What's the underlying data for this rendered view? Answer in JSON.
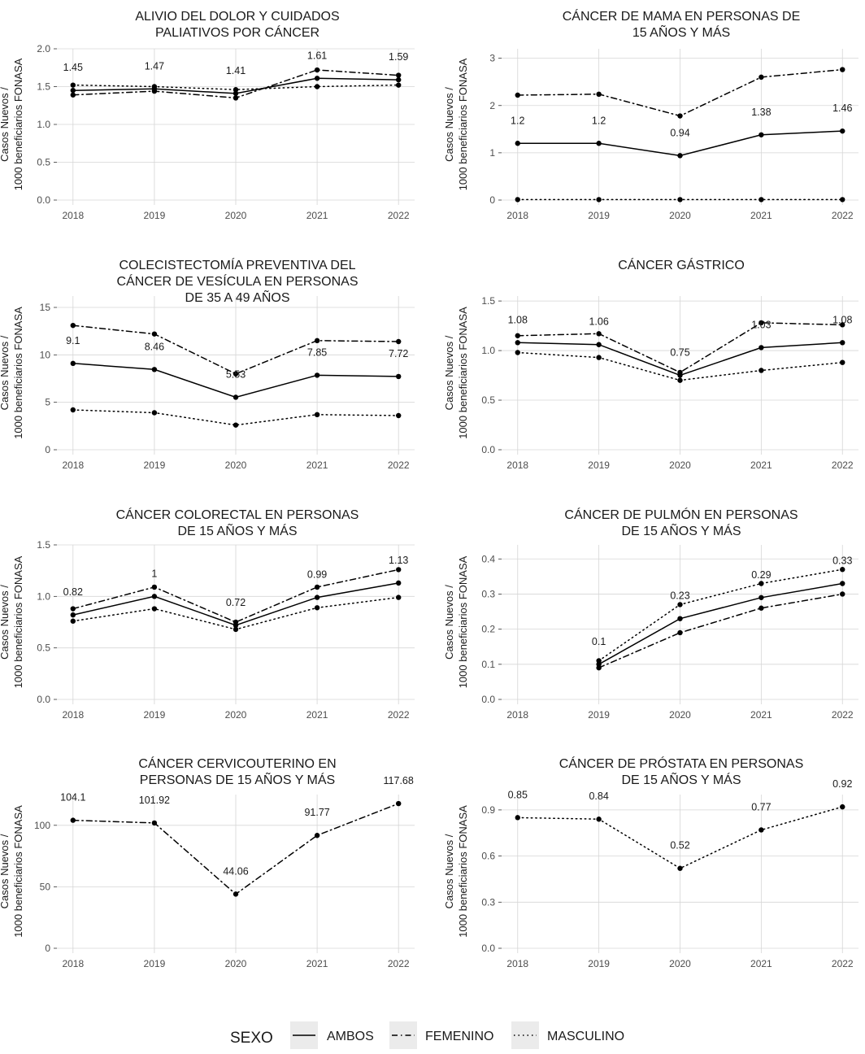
{
  "colors": {
    "grid": "#d6d6d6",
    "line": "#000000",
    "text": "#1a1a1a",
    "tick_text": "#4d4d4d"
  },
  "y_axis_label": [
    "Casos Nuevos /",
    "1000 beneficiarios FONASA"
  ],
  "legend": {
    "title": "SEXO",
    "items": [
      {
        "key": "ambos",
        "label": "AMBOS"
      },
      {
        "key": "femenino",
        "label": "FEMENINO"
      },
      {
        "key": "masculino",
        "label": "MASCULINO"
      }
    ]
  },
  "chart_data": [
    {
      "type": "line",
      "title": [
        "ALIVIO DEL DOLOR Y CUIDADOS",
        "PALIATIVOS POR CÁNCER"
      ],
      "x": [
        "2018",
        "2019",
        "2020",
        "2021",
        "2022"
      ],
      "ylim": [
        0,
        2.0
      ],
      "yticks": [
        "0.0",
        "0.5",
        "1.0",
        "1.5",
        "2.0"
      ],
      "series": [
        {
          "name": "AMBOS",
          "style": "solid",
          "values": [
            1.45,
            1.47,
            1.41,
            1.61,
            1.59
          ]
        },
        {
          "name": "FEMENINO",
          "style": "dashdot",
          "values": [
            1.39,
            1.44,
            1.35,
            1.72,
            1.65
          ]
        },
        {
          "name": "MASCULINO",
          "style": "dotted",
          "values": [
            1.52,
            1.5,
            1.46,
            1.5,
            1.52
          ]
        }
      ],
      "data_labels": [
        "1.45",
        "1.47",
        "1.41",
        "1.61",
        "1.59"
      ]
    },
    {
      "type": "line",
      "title": [
        "CÁNCER DE MAMA EN PERSONAS DE",
        "15 AÑOS Y MÁS"
      ],
      "x": [
        "2018",
        "2019",
        "2020",
        "2021",
        "2022"
      ],
      "ylim": [
        0,
        3.2
      ],
      "yticks": [
        "0",
        "1",
        "2",
        "3"
      ],
      "series": [
        {
          "name": "AMBOS",
          "style": "solid",
          "values": [
            1.2,
            1.2,
            0.94,
            1.38,
            1.46
          ]
        },
        {
          "name": "FEMENINO",
          "style": "dashdot",
          "values": [
            2.22,
            2.24,
            1.78,
            2.6,
            2.76
          ]
        },
        {
          "name": "MASCULINO",
          "style": "dotted",
          "values": [
            0.01,
            0.01,
            0.01,
            0.01,
            0.01
          ]
        }
      ],
      "data_labels": [
        "1.2",
        "1.2",
        "0.94",
        "1.38",
        "1.46"
      ]
    },
    {
      "type": "line",
      "title": [
        "COLECISTECTOMÍA PREVENTIVA DEL",
        "CÁNCER DE VESÍCULA EN PERSONAS",
        "DE 35 A 49 AÑOS"
      ],
      "x": [
        "2018",
        "2019",
        "2020",
        "2021",
        "2022"
      ],
      "ylim": [
        0,
        16.2
      ],
      "yticks": [
        "0",
        "5",
        "10",
        "15"
      ],
      "series": [
        {
          "name": "AMBOS",
          "style": "solid",
          "values": [
            9.1,
            8.46,
            5.53,
            7.85,
            7.72
          ]
        },
        {
          "name": "FEMENINO",
          "style": "dashdot",
          "values": [
            13.1,
            12.2,
            8.0,
            11.5,
            11.4
          ]
        },
        {
          "name": "MASCULINO",
          "style": "dotted",
          "values": [
            4.2,
            3.9,
            2.6,
            3.7,
            3.6
          ]
        }
      ],
      "data_labels": [
        "9.1",
        "8.46",
        "5.53",
        "7.85",
        "7.72"
      ]
    },
    {
      "type": "line",
      "title": [
        "CÁNCER GÁSTRICO"
      ],
      "x": [
        "2018",
        "2019",
        "2020",
        "2021",
        "2022"
      ],
      "ylim": [
        0,
        1.55
      ],
      "yticks": [
        "0.0",
        "0.5",
        "1.0",
        "1.5"
      ],
      "series": [
        {
          "name": "AMBOS",
          "style": "solid",
          "values": [
            1.08,
            1.06,
            0.75,
            1.03,
            1.08
          ]
        },
        {
          "name": "FEMENINO",
          "style": "dashdot",
          "values": [
            1.15,
            1.17,
            0.78,
            1.28,
            1.26
          ]
        },
        {
          "name": "MASCULINO",
          "style": "dotted",
          "values": [
            0.98,
            0.93,
            0.7,
            0.8,
            0.88
          ]
        }
      ],
      "data_labels": [
        "1.08",
        "1.06",
        "0.75",
        "1.03",
        "1.08"
      ]
    },
    {
      "type": "line",
      "title": [
        "CÁNCER COLORECTAL EN PERSONAS",
        "DE 15 AÑOS Y MÁS"
      ],
      "x": [
        "2018",
        "2019",
        "2020",
        "2021",
        "2022"
      ],
      "ylim": [
        0,
        1.5
      ],
      "yticks": [
        "0.0",
        "0.5",
        "1.0",
        "1.5"
      ],
      "series": [
        {
          "name": "AMBOS",
          "style": "solid",
          "values": [
            0.82,
            1.0,
            0.72,
            0.99,
            1.13
          ]
        },
        {
          "name": "FEMENINO",
          "style": "dashdot",
          "values": [
            0.88,
            1.09,
            0.75,
            1.09,
            1.26
          ]
        },
        {
          "name": "MASCULINO",
          "style": "dotted",
          "values": [
            0.76,
            0.88,
            0.68,
            0.89,
            0.99
          ]
        }
      ],
      "data_labels": [
        "0.82",
        "1",
        "0.72",
        "0.99",
        "1.13"
      ]
    },
    {
      "type": "line",
      "title": [
        "CÁNCER DE PULMÓN EN PERSONAS",
        "DE 15 AÑOS Y MÁS"
      ],
      "x": [
        "2018",
        "2019",
        "2020",
        "2021",
        "2022"
      ],
      "ylim": [
        0,
        0.44
      ],
      "yticks": [
        "0.0",
        "0.1",
        "0.2",
        "0.3",
        "0.4"
      ],
      "series": [
        {
          "name": "AMBOS",
          "style": "solid",
          "values": [
            null,
            0.1,
            0.23,
            0.29,
            0.33
          ]
        },
        {
          "name": "FEMENINO",
          "style": "dashdot",
          "values": [
            null,
            0.09,
            0.19,
            0.26,
            0.3
          ]
        },
        {
          "name": "MASCULINO",
          "style": "dotted",
          "values": [
            null,
            0.11,
            0.27,
            0.33,
            0.37
          ]
        }
      ],
      "data_labels": [
        "",
        "0.1",
        "0.23",
        "0.29",
        "0.33"
      ]
    },
    {
      "type": "line",
      "title": [
        "CÁNCER CERVICOUTERINO EN",
        "PERSONAS DE 15 AÑOS Y MÁS"
      ],
      "x": [
        "2018",
        "2019",
        "2020",
        "2021",
        "2022"
      ],
      "ylim": [
        0,
        125
      ],
      "yticks": [
        "0",
        "50",
        "100"
      ],
      "series": [
        {
          "name": "FEMENINO",
          "style": "dashdot",
          "values": [
            104.1,
            101.92,
            44.06,
            91.77,
            117.68
          ]
        }
      ],
      "data_labels": [
        "104.1",
        "101.92",
        "44.06",
        "91.77",
        "117.68"
      ]
    },
    {
      "type": "line",
      "title": [
        "CÁNCER DE PRÓSTATA EN PERSONAS",
        "DE 15 AÑOS Y MÁS"
      ],
      "x": [
        "2018",
        "2019",
        "2020",
        "2021",
        "2022"
      ],
      "ylim": [
        0,
        1.0
      ],
      "yticks": [
        "0.0",
        "0.3",
        "0.6",
        "0.9"
      ],
      "series": [
        {
          "name": "MASCULINO",
          "style": "dotted",
          "values": [
            0.85,
            0.84,
            0.52,
            0.77,
            0.92
          ]
        }
      ],
      "data_labels": [
        "0.85",
        "0.84",
        "0.52",
        "0.77",
        "0.92"
      ]
    }
  ]
}
